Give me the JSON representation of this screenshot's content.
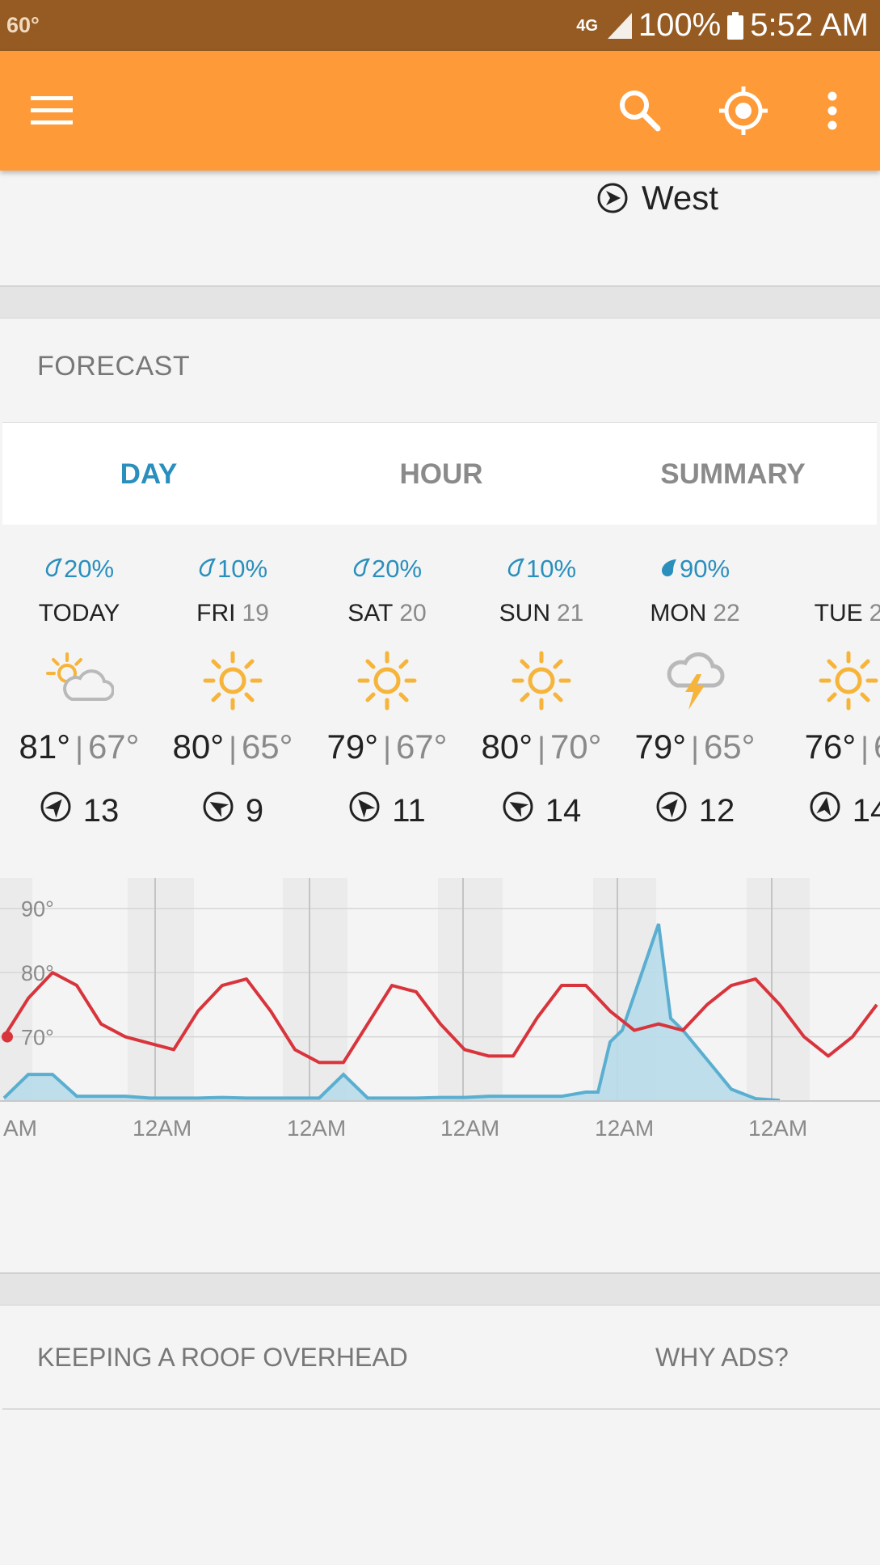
{
  "status_bar": {
    "temperature": "60°",
    "network": "4G",
    "battery": "100%",
    "time": "5:52 AM"
  },
  "app_bar": {
    "menu_icon": "hamburger-icon",
    "search_icon": "search-icon",
    "location_icon": "location-target-icon",
    "overflow_icon": "more-vert-icon"
  },
  "current_wind": {
    "direction": "West"
  },
  "forecast": {
    "title": "FORECAST",
    "tabs": [
      {
        "label": "DAY",
        "active": true
      },
      {
        "label": "HOUR",
        "active": false
      },
      {
        "label": "SUMMARY",
        "active": false
      }
    ],
    "days": [
      {
        "precip": "20%",
        "day": "TODAY",
        "date": "",
        "icon": "partly-cloudy-icon",
        "high": "81°",
        "low": "67°",
        "wind": "13",
        "wind_rotation": 40
      },
      {
        "precip": "10%",
        "day": "FRI",
        "date": "19",
        "icon": "sunny-icon",
        "high": "80°",
        "low": "65°",
        "wind": "9",
        "wind_rotation": -60
      },
      {
        "precip": "20%",
        "day": "SAT",
        "date": "20",
        "icon": "sunny-icon",
        "high": "79°",
        "low": "67°",
        "wind": "11",
        "wind_rotation": -40
      },
      {
        "precip": "10%",
        "day": "SUN",
        "date": "21",
        "icon": "sunny-icon",
        "high": "80°",
        "low": "70°",
        "wind": "14",
        "wind_rotation": -60
      },
      {
        "precip": "90%",
        "day": "MON",
        "date": "22",
        "icon": "thunderstorm-icon",
        "high": "79°",
        "low": "65°",
        "wind": "12",
        "wind_rotation": 40
      },
      {
        "precip": "",
        "day": "TUE",
        "date": "2",
        "icon": "sunny-icon",
        "high": "76°",
        "low": "6",
        "wind": "14",
        "wind_rotation": 10
      }
    ],
    "heavy_precip_index": 4
  },
  "chart_data": {
    "type": "line",
    "y_tick_labels": [
      "90°",
      "80°",
      "70°"
    ],
    "x_tick_labels": [
      "AM",
      "12AM",
      "12AM",
      "12AM",
      "12AM",
      "12AM"
    ],
    "ylim": [
      60,
      95
    ],
    "series": [
      {
        "color": "#d8343c",
        "x": [
          0,
          4,
          8,
          12,
          16,
          20,
          24,
          28,
          32,
          36,
          40,
          44,
          48,
          52,
          56,
          60,
          64,
          68,
          72,
          76,
          80,
          84,
          88,
          92,
          96,
          100,
          104,
          108,
          112,
          116,
          120,
          124,
          128,
          132,
          136,
          140,
          144
        ],
        "values": [
          70,
          76,
          80,
          78,
          72,
          70,
          69,
          68,
          74,
          78,
          79,
          74,
          68,
          66,
          66,
          72,
          78,
          77,
          72,
          68,
          67,
          67,
          73,
          78,
          78,
          74,
          71,
          72,
          71,
          75,
          78,
          79,
          75,
          70,
          67,
          70,
          75
        ]
      },
      {
        "color": "#5aaed0",
        "fill": "#b7dce9",
        "x": [
          0,
          4,
          8,
          12,
          16,
          20,
          24,
          28,
          32,
          36,
          40,
          44,
          48,
          52,
          56,
          60,
          64,
          68,
          72,
          76,
          80,
          84,
          88,
          92,
          96,
          98,
          100,
          102,
          104,
          106,
          108,
          110,
          112,
          116,
          120,
          124,
          128
        ],
        "values": [
          0.5,
          4.5,
          4.5,
          0.8,
          0.8,
          0.8,
          0.5,
          0.5,
          0.5,
          0.6,
          0.5,
          0.5,
          0.5,
          0.5,
          4.5,
          0.5,
          0.5,
          0.5,
          0.6,
          0.6,
          0.8,
          0.8,
          0.8,
          0.8,
          1.5,
          1.5,
          10,
          12,
          18,
          24,
          30,
          14,
          12,
          7,
          2,
          0.4,
          0.1
        ]
      }
    ]
  },
  "ad_card": {
    "title": "KEEPING A ROOF OVERHEAD",
    "why_ads": "WHY ADS?"
  }
}
